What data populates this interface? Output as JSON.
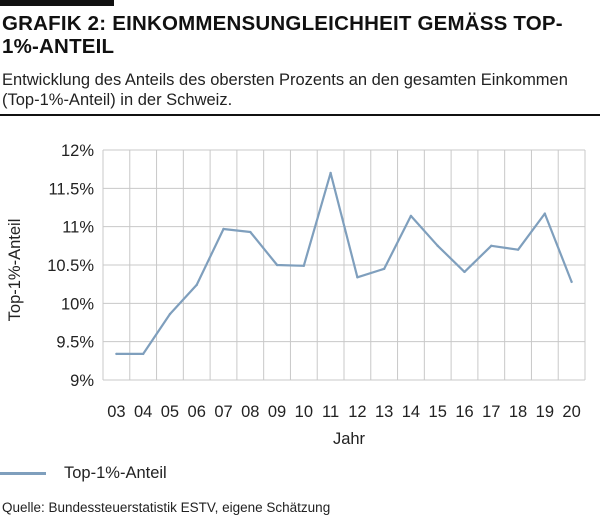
{
  "header": {
    "title": "GRAFIK 2: EINKOMMENSUNGLEICHHEIT GEMÄSS TOP-1%-ANTEIL",
    "subtitle": "Entwicklung des Anteils des obersten Prozents an den gesamten Einkommen (Top-1%-Anteil) in der Schweiz."
  },
  "colors": {
    "line": "#7f9fbd",
    "grid": "#c8c8c8",
    "text": "#222222"
  },
  "legend": {
    "label": "Top-1%-Anteil"
  },
  "source": "Quelle: Bundessteuerstatistik ESTV, eigene Schätzung",
  "chart_data": {
    "type": "line",
    "categories": [
      "03",
      "04",
      "05",
      "06",
      "07",
      "08",
      "09",
      "10",
      "11",
      "12",
      "13",
      "14",
      "15",
      "16",
      "17",
      "18",
      "19",
      "20"
    ],
    "series": [
      {
        "name": "Top-1%-Anteil",
        "values": [
          9.34,
          9.34,
          9.86,
          10.24,
          10.97,
          10.93,
          10.5,
          10.49,
          11.7,
          10.34,
          10.45,
          11.14,
          10.75,
          10.41,
          10.75,
          10.7,
          11.17,
          10.28
        ]
      }
    ],
    "xlabel": "Jahr",
    "ylabel": "Top-1%-Anteil",
    "ylim": [
      9,
      12
    ],
    "yticks": [
      9,
      9.5,
      10,
      10.5,
      11,
      11.5,
      12
    ],
    "ytick_labels": [
      "9%",
      "9.5%",
      "10%",
      "10.5%",
      "11%",
      "11.5%",
      "12%"
    ],
    "grid": true,
    "legend_position": "bottom-left"
  }
}
